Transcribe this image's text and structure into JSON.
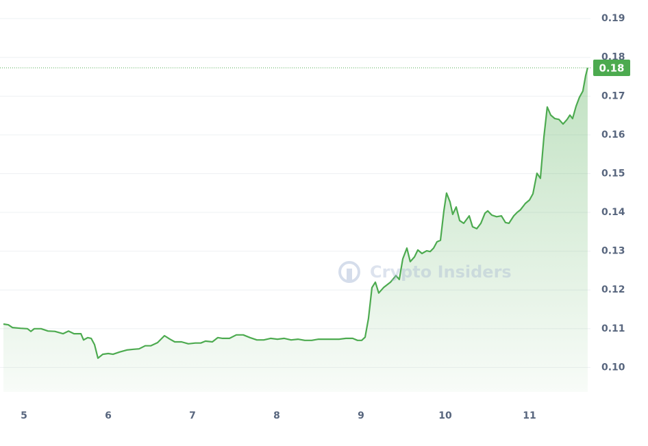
{
  "chart_data": {
    "type": "line",
    "watermark": "Crypto Insiders",
    "x": [
      4.756,
      4.813,
      4.862,
      4.959,
      5.041,
      5.081,
      5.122,
      5.203,
      5.285,
      5.366,
      5.463,
      5.528,
      5.593,
      5.675,
      5.707,
      5.756,
      5.797,
      5.837,
      5.878,
      5.935,
      6.0,
      6.057,
      6.138,
      6.219,
      6.301,
      6.366,
      6.439,
      6.504,
      6.585,
      6.667,
      6.732,
      6.789,
      6.87,
      6.951,
      7.033,
      7.098,
      7.154,
      7.236,
      7.301,
      7.358,
      7.439,
      7.52,
      7.602,
      7.683,
      7.764,
      7.846,
      7.927,
      8.008,
      8.089,
      8.171,
      8.252,
      8.333,
      8.415,
      8.496,
      8.577,
      8.659,
      8.74,
      8.821,
      8.902,
      8.959,
      9.008,
      9.049,
      9.089,
      9.13,
      9.171,
      9.211,
      9.268,
      9.35,
      9.415,
      9.455,
      9.496,
      9.545,
      9.585,
      9.634,
      9.675,
      9.724,
      9.78,
      9.821,
      9.862,
      9.902,
      9.943,
      9.984,
      10.016,
      10.057,
      10.089,
      10.13,
      10.171,
      10.22,
      10.285,
      10.325,
      10.374,
      10.423,
      10.472,
      10.504,
      10.553,
      10.61,
      10.667,
      10.715,
      10.756,
      10.813,
      10.854,
      10.894,
      10.951,
      11.0,
      11.041,
      11.089,
      11.13,
      11.171,
      11.211,
      11.252,
      11.301,
      11.35,
      11.399,
      11.447,
      11.48,
      11.512,
      11.553,
      11.593,
      11.634,
      11.667,
      11.691
    ],
    "series": [
      {
        "color": "#4caa4f",
        "values": [
          0.1112,
          0.111,
          0.1103,
          0.1101,
          0.11,
          0.1093,
          0.11,
          0.11,
          0.1094,
          0.1093,
          0.1087,
          0.1094,
          0.1087,
          0.1087,
          0.1071,
          0.1077,
          0.1075,
          0.1059,
          0.1024,
          0.1034,
          0.1036,
          0.1034,
          0.104,
          0.1045,
          0.1047,
          0.1048,
          0.1056,
          0.1056,
          0.1064,
          0.1082,
          0.1073,
          0.1066,
          0.1066,
          0.1061,
          0.1063,
          0.1063,
          0.1068,
          0.1066,
          0.1077,
          0.1075,
          0.1075,
          0.1084,
          0.1084,
          0.1077,
          0.1071,
          0.1071,
          0.1075,
          0.1073,
          0.1075,
          0.1071,
          0.1073,
          0.107,
          0.107,
          0.1073,
          0.1073,
          0.1073,
          0.1073,
          0.1075,
          0.1075,
          0.107,
          0.107,
          0.1078,
          0.1126,
          0.1206,
          0.122,
          0.1192,
          0.1206,
          0.122,
          0.1237,
          0.1227,
          0.128,
          0.1308,
          0.1273,
          0.1285,
          0.1303,
          0.1294,
          0.1301,
          0.1299,
          0.1308,
          0.1324,
          0.1328,
          0.1404,
          0.145,
          0.1427,
          0.1395,
          0.1414,
          0.1379,
          0.1372,
          0.1391,
          0.1363,
          0.1358,
          0.1372,
          0.1398,
          0.1404,
          0.1393,
          0.1389,
          0.1391,
          0.1374,
          0.1372,
          0.1391,
          0.14,
          0.1407,
          0.1423,
          0.1432,
          0.1448,
          0.1501,
          0.1488,
          0.1594,
          0.1672,
          0.1651,
          0.1642,
          0.164,
          0.1628,
          0.164,
          0.1651,
          0.1642,
          0.1674,
          0.1697,
          0.1713,
          0.1753,
          0.1773
        ]
      }
    ],
    "price_label": {
      "value": 0.1773,
      "label": "0.18"
    },
    "xlim": [
      4.715,
      11.724
    ],
    "ylim": [
      0.0937,
      0.1948
    ],
    "xticks": [
      5,
      6,
      7,
      8,
      9,
      10,
      11
    ],
    "yticks": [
      {
        "value": 0.1,
        "label": "0.10"
      },
      0.11,
      0.12,
      0.13,
      0.14,
      0.15,
      0.16,
      0.17,
      0.18,
      0.19
    ],
    "grid": true
  }
}
